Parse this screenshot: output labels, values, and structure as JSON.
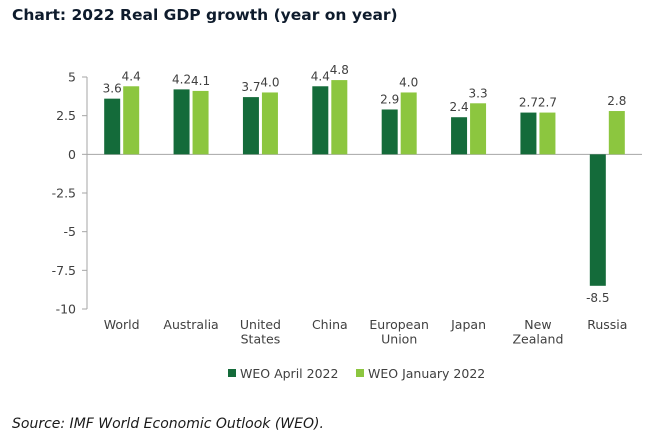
{
  "chart_title": "Chart: 2022 Real GDP growth (year on year)",
  "source": "Source: IMF World Economic Outlook (WEO).",
  "colors": {
    "april": "#146b3a",
    "january": "#8cc63f",
    "axis": "#a6a6a6",
    "text": "#404040"
  },
  "chart_data": {
    "type": "bar",
    "title": "Chart: 2022 Real GDP growth (year on year)",
    "xlabel": "",
    "ylabel": "",
    "ylim": [
      -10,
      5
    ],
    "yticks": [
      5,
      2.5,
      0,
      -2.5,
      -5,
      -7.5,
      -10
    ],
    "ytick_labels": [
      "5",
      "2.5",
      "0",
      "-2.5",
      "-5",
      "-7.5",
      "-10"
    ],
    "grid": false,
    "legend_position": "bottom",
    "categories": [
      [
        "World"
      ],
      [
        "Australia"
      ],
      [
        "United",
        "States"
      ],
      [
        "China"
      ],
      [
        "European",
        "Union"
      ],
      [
        "Japan"
      ],
      [
        "New",
        "Zealand"
      ],
      [
        "Russia"
      ]
    ],
    "series": [
      {
        "name": "WEO April 2022",
        "color": "#146b3a",
        "values": [
          3.6,
          4.2,
          3.7,
          4.4,
          2.9,
          2.4,
          2.7,
          -8.5
        ],
        "labels": [
          "3.6",
          "4.2",
          "3.7",
          "4.4",
          "2.9",
          "2.4",
          "2.7",
          "-8.5"
        ]
      },
      {
        "name": "WEO January 2022",
        "color": "#8cc63f",
        "values": [
          4.4,
          4.1,
          4.0,
          4.8,
          4.0,
          3.3,
          2.7,
          2.8
        ],
        "labels": [
          "4.4",
          "4.1",
          "4.0",
          "4.8",
          "4.0",
          "3.3",
          "2.7",
          "2.8"
        ]
      }
    ]
  }
}
